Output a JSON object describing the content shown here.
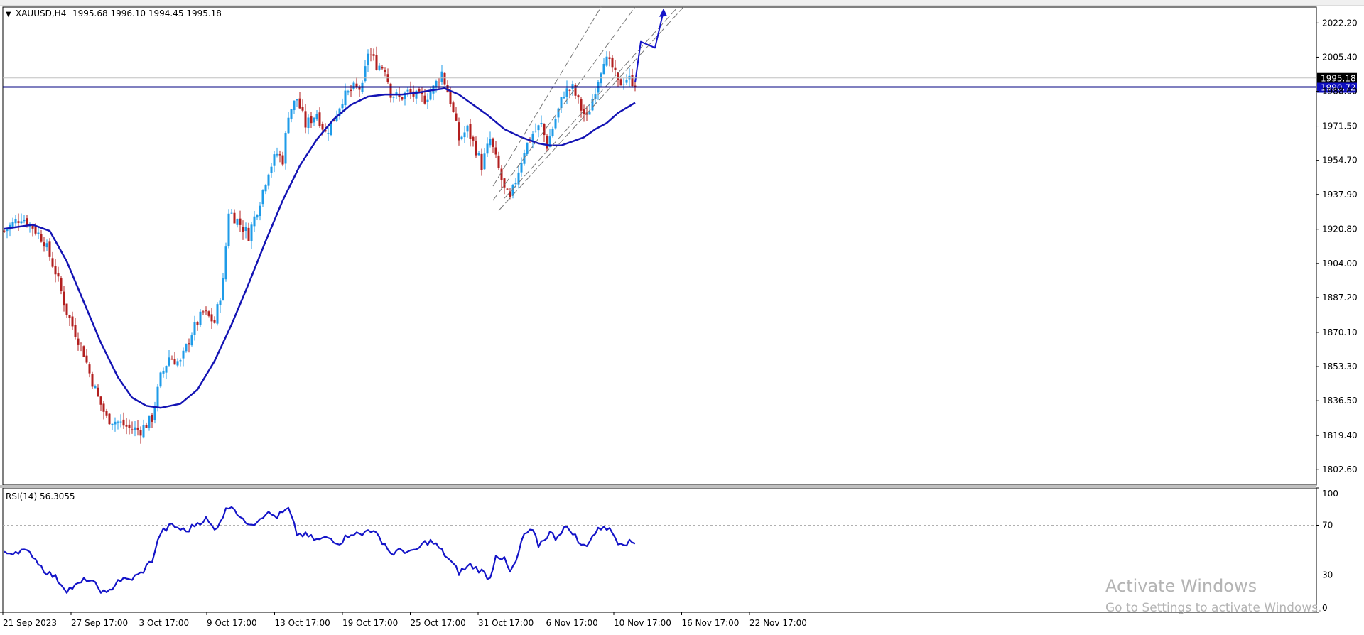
{
  "window": {
    "symbol_header": "XAUUSD,H4",
    "ohlc_header": "1995.68 1996.10 1994.45 1995.18"
  },
  "watermark": {
    "title": "Activate Windows",
    "subtitle": "Go to Settings to activate Windows."
  },
  "colors": {
    "bull": "#1E9BE8",
    "bear": "#B21E1E",
    "ma": "#1414B4",
    "rsi": "#1414C8",
    "hline": "#000080",
    "channel": "#777777",
    "price_label_bg": "#000000",
    "hline_label_bg": "#1010C0"
  },
  "chart_data": [
    {
      "type": "candlestick",
      "symbol": "XAUUSD",
      "timeframe": "H4",
      "ylim": [
        1795,
        2030
      ],
      "y_ticks": [
        "2022.20",
        "2005.40",
        "1988.60",
        "1971.50",
        "1954.70",
        "1937.90",
        "1920.80",
        "1904.00",
        "1887.20",
        "1870.10",
        "1853.30",
        "1836.50",
        "1819.40",
        "1802.60"
      ],
      "x_ticks": [
        "21 Sep 2023",
        "27 Sep 17:00",
        "3 Oct 17:00",
        "9 Oct 17:00",
        "13 Oct 17:00",
        "19 Oct 17:00",
        "25 Oct 17:00",
        "31 Oct 17:00",
        "6 Nov 17:00",
        "10 Nov 17:00",
        "16 Nov 17:00",
        "22 Nov 17:00"
      ],
      "current_price": 1995.18,
      "horizontal_line": 1990.72,
      "close_path": [
        [
          0,
          1920
        ],
        [
          6,
          1927
        ],
        [
          10,
          1922
        ],
        [
          14,
          1915
        ],
        [
          18,
          1900
        ],
        [
          22,
          1880
        ],
        [
          25,
          1870
        ],
        [
          28,
          1860
        ],
        [
          30,
          1850
        ],
        [
          33,
          1838
        ],
        [
          36,
          1828
        ],
        [
          40,
          1826
        ],
        [
          44,
          1823
        ],
        [
          48,
          1822
        ],
        [
          52,
          1828
        ],
        [
          55,
          1848
        ],
        [
          58,
          1858
        ],
        [
          62,
          1855
        ],
        [
          66,
          1870
        ],
        [
          70,
          1880
        ],
        [
          74,
          1875
        ],
        [
          77,
          1895
        ],
        [
          79,
          1930
        ],
        [
          82,
          1925
        ],
        [
          86,
          1918
        ],
        [
          90,
          1935
        ],
        [
          93,
          1950
        ],
        [
          96,
          1958
        ],
        [
          98,
          1955
        ],
        [
          100,
          1978
        ],
        [
          103,
          1985
        ],
        [
          106,
          1972
        ],
        [
          110,
          1978
        ],
        [
          113,
          1968
        ],
        [
          116,
          1975
        ],
        [
          119,
          1985
        ],
        [
          123,
          1990
        ],
        [
          126,
          1990
        ],
        [
          128,
          2008
        ],
        [
          131,
          2002
        ],
        [
          134,
          2000
        ],
        [
          136,
          1988
        ],
        [
          139,
          1985
        ],
        [
          142,
          1988
        ],
        [
          145,
          1986
        ],
        [
          148,
          1985
        ],
        [
          151,
          1990
        ],
        [
          154,
          1998
        ],
        [
          157,
          1984
        ],
        [
          160,
          1965
        ],
        [
          163,
          1970
        ],
        [
          166,
          1960
        ],
        [
          168,
          1952
        ],
        [
          171,
          1965
        ],
        [
          174,
          1950
        ],
        [
          176,
          1940
        ],
        [
          178,
          1935
        ],
        [
          180,
          1945
        ],
        [
          183,
          1960
        ],
        [
          186,
          1968
        ],
        [
          189,
          1972
        ],
        [
          191,
          1962
        ],
        [
          194,
          1975
        ],
        [
          197,
          1988
        ],
        [
          200,
          1990
        ],
        [
          203,
          1980
        ],
        [
          205,
          1975
        ],
        [
          208,
          1990
        ],
        [
          211,
          2005
        ],
        [
          214,
          2000
        ],
        [
          216,
          1992
        ],
        [
          219,
          1995
        ],
        [
          222,
          1993
        ]
      ],
      "series": [
        {
          "type": "line",
          "color": "#1414B4",
          "points": [
            [
              0,
              1921
            ],
            [
              10,
              1923
            ],
            [
              16,
              1920
            ],
            [
              22,
              1905
            ],
            [
              28,
              1885
            ],
            [
              34,
              1865
            ],
            [
              40,
              1848
            ],
            [
              45,
              1838
            ],
            [
              50,
              1834
            ],
            [
              55,
              1833
            ],
            [
              62,
              1835
            ],
            [
              68,
              1842
            ],
            [
              74,
              1856
            ],
            [
              80,
              1874
            ],
            [
              86,
              1894
            ],
            [
              92,
              1915
            ],
            [
              98,
              1935
            ],
            [
              104,
              1952
            ],
            [
              110,
              1965
            ],
            [
              116,
              1975
            ],
            [
              122,
              1982
            ],
            [
              128,
              1986
            ],
            [
              134,
              1987
            ],
            [
              140,
              1987
            ],
            [
              146,
              1988
            ],
            [
              150,
              1989
            ],
            [
              155,
              1990
            ],
            [
              160,
              1987
            ],
            [
              165,
              1982
            ],
            [
              170,
              1977
            ],
            [
              176,
              1970
            ],
            [
              182,
              1966
            ],
            [
              188,
              1963
            ],
            [
              192,
              1962
            ],
            [
              196,
              1962
            ],
            [
              200,
              1964
            ],
            [
              204,
              1966
            ],
            [
              208,
              1970
            ],
            [
              212,
              1973
            ],
            [
              216,
              1978
            ],
            [
              222,
              1983
            ]
          ]
        }
      ],
      "channel": {
        "lines": [
          [
            [
              172,
              1935
            ],
            [
              222,
              2030
            ]
          ],
          [
            [
              174,
              1930
            ],
            [
              239,
              2030
            ]
          ],
          [
            [
              176,
              1936
            ],
            [
              237,
              2030
            ]
          ],
          [
            [
              172,
              1942
            ],
            [
              210,
              2030
            ]
          ]
        ]
      },
      "forecast_arrow": [
        [
          222,
          1993
        ],
        [
          224,
          2013
        ],
        [
          229,
          2010
        ],
        [
          231,
          2022
        ],
        [
          232,
          2028
        ]
      ]
    },
    {
      "type": "line",
      "indicator": "RSI(14)",
      "label": "RSI(14) 56.3055",
      "ylim": [
        0,
        100
      ],
      "y_ticks": [
        "100",
        "70",
        "30",
        "0"
      ],
      "levels": [
        70,
        30
      ],
      "values": [
        [
          0,
          47
        ],
        [
          6,
          50
        ],
        [
          10,
          46
        ],
        [
          14,
          34
        ],
        [
          18,
          28
        ],
        [
          22,
          18
        ],
        [
          26,
          22
        ],
        [
          29,
          27
        ],
        [
          32,
          22
        ],
        [
          36,
          14
        ],
        [
          40,
          26
        ],
        [
          44,
          26
        ],
        [
          48,
          31
        ],
        [
          52,
          42
        ],
        [
          55,
          64
        ],
        [
          59,
          70
        ],
        [
          64,
          65
        ],
        [
          68,
          72
        ],
        [
          71,
          75
        ],
        [
          74,
          66
        ],
        [
          78,
          82
        ],
        [
          80,
          87
        ],
        [
          84,
          73
        ],
        [
          88,
          72
        ],
        [
          92,
          80
        ],
        [
          96,
          77
        ],
        [
          100,
          83
        ],
        [
          103,
          63
        ],
        [
          106,
          62
        ],
        [
          110,
          58
        ],
        [
          114,
          60
        ],
        [
          118,
          56
        ],
        [
          122,
          64
        ],
        [
          126,
          62
        ],
        [
          128,
          68
        ],
        [
          131,
          62
        ],
        [
          134,
          55
        ],
        [
          136,
          47
        ],
        [
          140,
          50
        ],
        [
          144,
          48
        ],
        [
          148,
          56
        ],
        [
          150,
          57
        ],
        [
          152,
          54
        ],
        [
          156,
          44
        ],
        [
          160,
          32
        ],
        [
          164,
          38
        ],
        [
          168,
          33
        ],
        [
          171,
          27
        ],
        [
          173,
          47
        ],
        [
          176,
          42
        ],
        [
          178,
          32
        ],
        [
          180,
          40
        ],
        [
          183,
          63
        ],
        [
          186,
          65
        ],
        [
          188,
          54
        ],
        [
          192,
          64
        ],
        [
          194,
          60
        ],
        [
          197,
          68
        ],
        [
          200,
          65
        ],
        [
          203,
          53
        ],
        [
          205,
          55
        ],
        [
          208,
          64
        ],
        [
          211,
          70
        ],
        [
          214,
          64
        ],
        [
          216,
          57
        ],
        [
          219,
          56
        ],
        [
          222,
          56
        ]
      ]
    }
  ]
}
